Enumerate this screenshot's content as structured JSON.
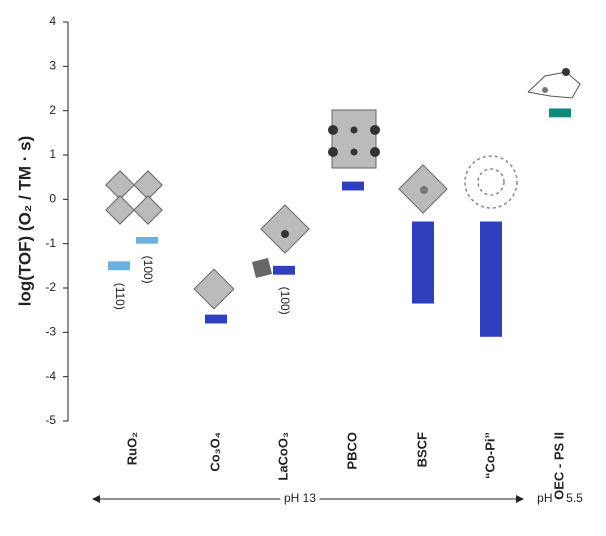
{
  "chart_data": {
    "type": "floating-bar",
    "y_label": "log(TOF) (O₂ / TM · s)",
    "categories": [
      "RuO₂",
      "Co₃O₄",
      "LaCoO₃",
      "PBCO",
      "BSCF",
      "“Co-Pi”",
      "OEC - PS II"
    ],
    "values": [
      [
        [
          -1.6,
          -1.4
        ],
        [
          -1.0,
          -0.85
        ]
      ],
      [
        [
          -2.8,
          -2.6
        ]
      ],
      [
        [
          -1.7,
          -1.5
        ]
      ],
      [
        [
          0.2,
          0.4
        ]
      ],
      [
        [
          -2.35,
          -0.5
        ]
      ],
      [
        [
          -3.1,
          -0.5
        ]
      ],
      [
        [
          1.85,
          2.05
        ]
      ]
    ],
    "bar_labels": [
      [
        "(110)",
        "(100)"
      ],
      [],
      [
        "(100)"
      ],
      [],
      [],
      [],
      []
    ],
    "colors": [
      "#6cb0e2",
      "#2f3fbd",
      "#2f3fbd",
      "#2f3fbd",
      "#2f3fbd",
      "#2f3fbd",
      "#0f8a7c"
    ],
    "ylim": [
      -5,
      4
    ],
    "yticks": [
      -5,
      -4,
      -3,
      -2,
      -1,
      0,
      1,
      2,
      3,
      4
    ],
    "ranges": [
      "pH 13",
      "pH ~ 5.5"
    ]
  }
}
